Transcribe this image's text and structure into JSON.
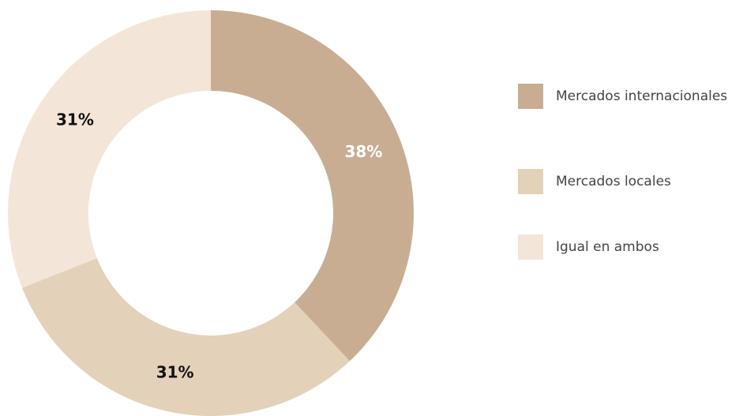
{
  "chart_data": {
    "type": "pie",
    "categories": [
      "Mercados internacionales",
      "Mercados locales",
      "Igual en ambos"
    ],
    "values": [
      38,
      31,
      31
    ],
    "value_labels": [
      "38%",
      "31%",
      "31%"
    ],
    "colors": [
      "#c9ad93",
      "#e3d1b9",
      "#f3e6d8"
    ],
    "legend": "right"
  }
}
